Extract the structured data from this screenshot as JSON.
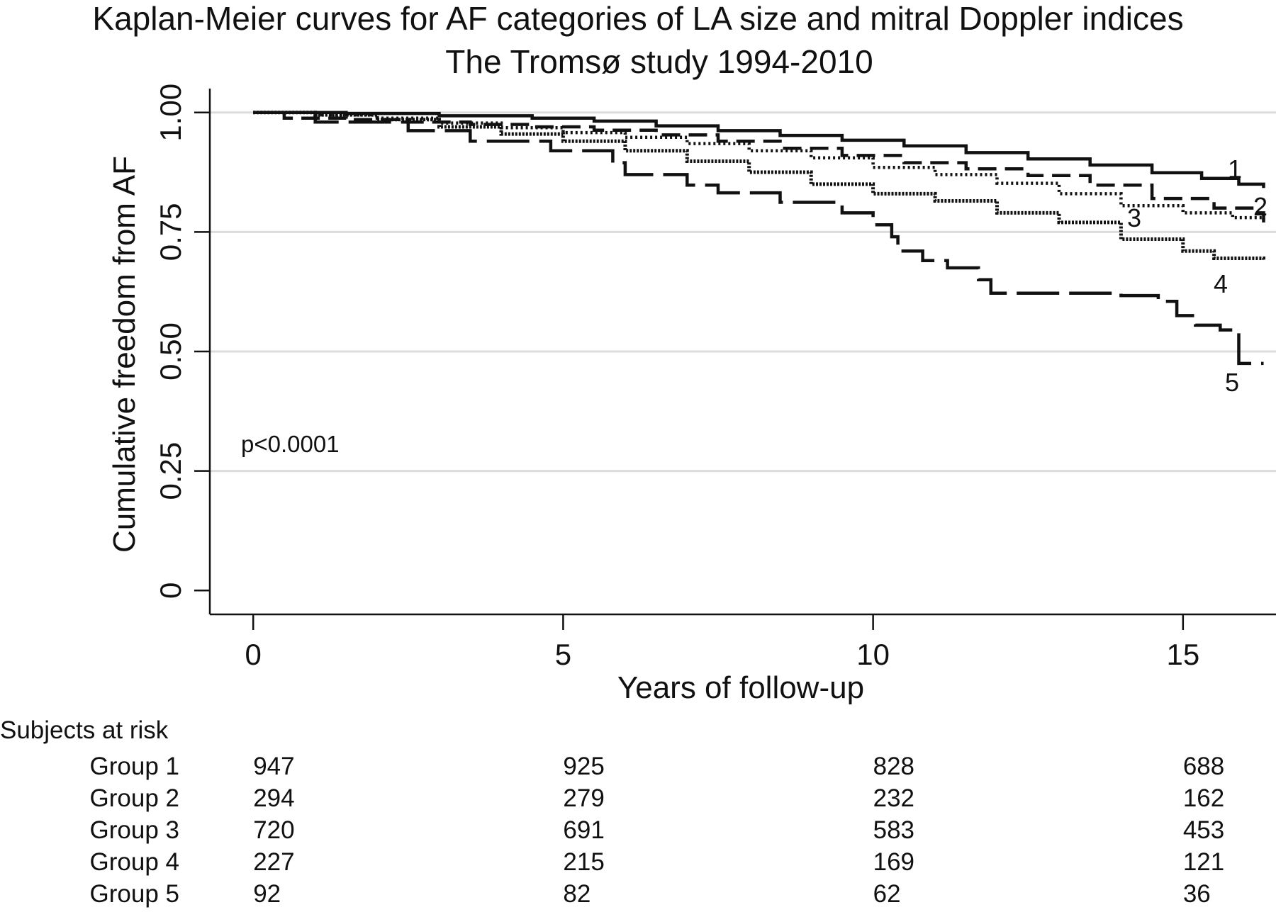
{
  "chart_data": {
    "type": "line",
    "step": true,
    "title": "Kaplan-Meier curves for AF categories of LA size and mitral Doppler indices",
    "subtitle": "The Tromsø study 1994-2010",
    "xlabel": "Years of follow-up",
    "ylabel": "Cumulative freedom from AF",
    "xlim": [
      -0.7,
      16.5
    ],
    "ylim": [
      -0.05,
      1.05
    ],
    "x_ticks": [
      0,
      5,
      10,
      15
    ],
    "x_tick_labels": [
      "0",
      "5",
      "10",
      "15"
    ],
    "y_ticks": [
      0,
      0.25,
      0.5,
      0.75,
      1.0
    ],
    "y_tick_labels": [
      "0",
      "0.25",
      "0.50",
      "0.75",
      "1.00"
    ],
    "grid": "horizontal",
    "annotation": "p<0.0001",
    "series": [
      {
        "name": "1",
        "line_style": "solid",
        "points": [
          [
            0,
            1.0
          ],
          [
            1.5,
            0.998
          ],
          [
            3,
            0.993
          ],
          [
            4.5,
            0.988
          ],
          [
            5.5,
            0.982
          ],
          [
            6.5,
            0.972
          ],
          [
            7.5,
            0.962
          ],
          [
            8.5,
            0.952
          ],
          [
            9.5,
            0.942
          ],
          [
            10.5,
            0.93
          ],
          [
            11.5,
            0.916
          ],
          [
            12.5,
            0.903
          ],
          [
            13.5,
            0.89
          ],
          [
            14.5,
            0.874
          ],
          [
            15.3,
            0.862
          ],
          [
            15.9,
            0.85
          ],
          [
            16.3,
            0.842
          ]
        ]
      },
      {
        "name": "2",
        "line_style": "dashed",
        "points": [
          [
            0,
            1.0
          ],
          [
            0.5,
            0.988
          ],
          [
            1.5,
            0.985
          ],
          [
            2.5,
            0.98
          ],
          [
            3.5,
            0.975
          ],
          [
            4.5,
            0.97
          ],
          [
            5.5,
            0.963
          ],
          [
            6.5,
            0.953
          ],
          [
            7.5,
            0.94
          ],
          [
            8.5,
            0.925
          ],
          [
            9.5,
            0.91
          ],
          [
            10.5,
            0.895
          ],
          [
            11.5,
            0.882
          ],
          [
            12.5,
            0.868
          ],
          [
            13.5,
            0.848
          ],
          [
            14.5,
            0.82
          ],
          [
            15.5,
            0.8
          ],
          [
            16.2,
            0.79
          ],
          [
            16.3,
            0.77
          ]
        ]
      },
      {
        "name": "3",
        "line_style": "dotted",
        "points": [
          [
            0,
            1.0
          ],
          [
            1,
            0.995
          ],
          [
            2,
            0.988
          ],
          [
            3,
            0.978
          ],
          [
            4,
            0.968
          ],
          [
            5,
            0.958
          ],
          [
            6,
            0.948
          ],
          [
            7,
            0.935
          ],
          [
            8,
            0.92
          ],
          [
            9,
            0.905
          ],
          [
            10,
            0.885
          ],
          [
            11,
            0.87
          ],
          [
            12,
            0.852
          ],
          [
            13,
            0.83
          ],
          [
            14,
            0.805
          ],
          [
            15,
            0.79
          ],
          [
            15.8,
            0.78
          ],
          [
            16.3,
            0.775
          ]
        ]
      },
      {
        "name": "4",
        "line_style": "dash-dot",
        "points": [
          [
            0,
            1.0
          ],
          [
            1,
            0.995
          ],
          [
            2,
            0.985
          ],
          [
            3,
            0.97
          ],
          [
            4,
            0.955
          ],
          [
            5,
            0.94
          ],
          [
            6,
            0.92
          ],
          [
            7,
            0.898
          ],
          [
            8,
            0.875
          ],
          [
            9,
            0.85
          ],
          [
            10,
            0.83
          ],
          [
            11,
            0.815
          ],
          [
            12,
            0.79
          ],
          [
            13,
            0.77
          ],
          [
            14,
            0.735
          ],
          [
            15,
            0.71
          ],
          [
            15.5,
            0.695
          ],
          [
            16.3,
            0.69
          ]
        ]
      },
      {
        "name": "5",
        "line_style": "long-dash",
        "points": [
          [
            0,
            1.0
          ],
          [
            1,
            0.98
          ],
          [
            2.5,
            0.962
          ],
          [
            3.5,
            0.94
          ],
          [
            4.8,
            0.92
          ],
          [
            5.8,
            0.895
          ],
          [
            6,
            0.87
          ],
          [
            7,
            0.848
          ],
          [
            7.5,
            0.832
          ],
          [
            8.5,
            0.812
          ],
          [
            9.5,
            0.79
          ],
          [
            10,
            0.765
          ],
          [
            10.3,
            0.74
          ],
          [
            10.4,
            0.71
          ],
          [
            10.8,
            0.69
          ],
          [
            11.2,
            0.675
          ],
          [
            11.7,
            0.65
          ],
          [
            11.9,
            0.622
          ],
          [
            14,
            0.617
          ],
          [
            14.6,
            0.605
          ],
          [
            14.9,
            0.575
          ],
          [
            15.2,
            0.555
          ],
          [
            15.6,
            0.545
          ],
          [
            15.9,
            0.475
          ],
          [
            16.3,
            0.475
          ]
        ]
      }
    ],
    "risk_table": {
      "title": "Subjects at risk",
      "times": [
        0,
        5,
        10,
        15
      ],
      "rows": [
        {
          "label": "Group 1",
          "values": [
            "947",
            "925",
            "828",
            "688"
          ]
        },
        {
          "label": "Group 2",
          "values": [
            "294",
            "279",
            "232",
            "162"
          ]
        },
        {
          "label": "Group 3",
          "values": [
            "720",
            "691",
            "583",
            "453"
          ]
        },
        {
          "label": "Group 4",
          "values": [
            "227",
            "215",
            "169",
            "121"
          ]
        },
        {
          "label": "Group 5",
          "values": [
            "92",
            "82",
            "62",
            "36"
          ]
        }
      ]
    }
  }
}
